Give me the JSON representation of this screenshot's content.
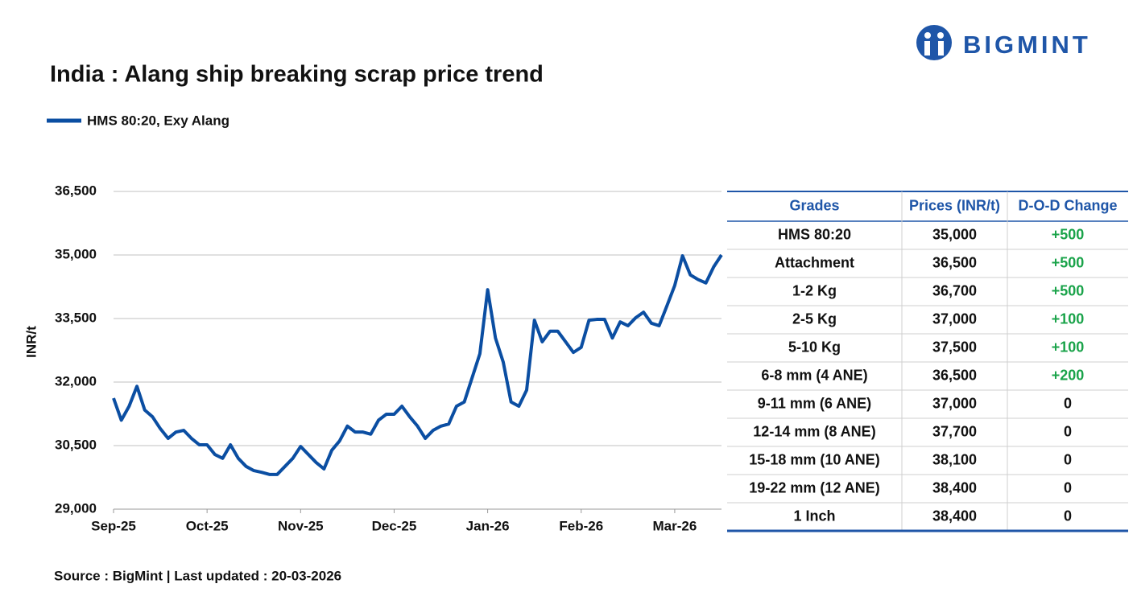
{
  "logo": "BIGMINT",
  "chart_data": {
    "type": "line",
    "title": "India : Alang ship breaking scrap price trend",
    "y_label": "INR/t",
    "categories": [
      "Sep-25",
      null,
      null,
      null,
      null,
      null,
      null,
      null,
      null,
      null,
      null,
      null,
      "Oct-25",
      null,
      null,
      null,
      null,
      null,
      null,
      null,
      null,
      null,
      null,
      null,
      "Nov-25",
      null,
      null,
      null,
      null,
      null,
      null,
      null,
      null,
      null,
      null,
      null,
      "Dec-25",
      null,
      null,
      null,
      null,
      null,
      null,
      null,
      null,
      null,
      null,
      null,
      "Jan-26",
      null,
      null,
      null,
      null,
      null,
      null,
      null,
      null,
      null,
      null,
      null,
      "Feb-26",
      null,
      null,
      null,
      null,
      null,
      null,
      null,
      null,
      null,
      null,
      null,
      "Mar-26",
      null,
      null,
      null,
      null,
      null,
      null
    ],
    "series": [
      {
        "name": "HMS 80:20, Exy Alang",
        "color": "#0b4ea2",
        "values": [
          31620,
          31100,
          31430,
          31900,
          31340,
          31180,
          30900,
          30670,
          30820,
          30860,
          30670,
          30520,
          30520,
          30290,
          30200,
          30520,
          30200,
          30010,
          29910,
          29870,
          29820,
          29820,
          30010,
          30200,
          30480,
          30290,
          30100,
          29950,
          30390,
          30610,
          30960,
          30820,
          30820,
          30770,
          31100,
          31240,
          31240,
          31430,
          31180,
          30960,
          30670,
          30860,
          30960,
          31010,
          31430,
          31530,
          32100,
          32670,
          34180,
          33040,
          32470,
          31530,
          31430,
          31810,
          33460,
          32950,
          33200,
          33200,
          32950,
          32700,
          32820,
          33460,
          33480,
          33480,
          33040,
          33420,
          33330,
          33520,
          33650,
          33390,
          33330,
          33800,
          34280,
          34980,
          34530,
          34420,
          34340,
          34720,
          35000
        ]
      }
    ],
    "ylim": [
      29000,
      36500
    ],
    "yticks": [
      {
        "value": 29000,
        "label": "29,000"
      },
      {
        "value": 30500,
        "label": "30,500"
      },
      {
        "value": 32000,
        "label": "32,000"
      },
      {
        "value": 33500,
        "label": "33,500"
      },
      {
        "value": 35000,
        "label": "35,000"
      },
      {
        "value": 36500,
        "label": "36,500"
      }
    ],
    "grid": true
  },
  "table": {
    "header": [
      "Grades",
      "Prices (INR/t)",
      "D-O-D Change"
    ],
    "rows": [
      [
        "HMS 80:20",
        "35,000",
        "+500"
      ],
      [
        "Attachment",
        "36,500",
        "+500"
      ],
      [
        "1-2 Kg",
        "36,700",
        "+500"
      ],
      [
        "2-5 Kg",
        "37,000",
        "+100"
      ],
      [
        "5-10 Kg",
        "37,500",
        "+100"
      ],
      [
        "6-8 mm (4 ANE)",
        "36,500",
        "+200"
      ],
      [
        "9-11 mm (6 ANE)",
        "37,000",
        "0"
      ],
      [
        "12-14 mm (8 ANE)",
        "37,700",
        "0"
      ],
      [
        "15-18 mm (10 ANE)",
        "38,100",
        "0"
      ],
      [
        "19-22 mm (12 ANE)",
        "38,400",
        "0"
      ],
      [
        "1 Inch",
        "38,400",
        "0"
      ]
    ]
  },
  "source": "Source : BigMint | Last updated : 20-03-2026"
}
